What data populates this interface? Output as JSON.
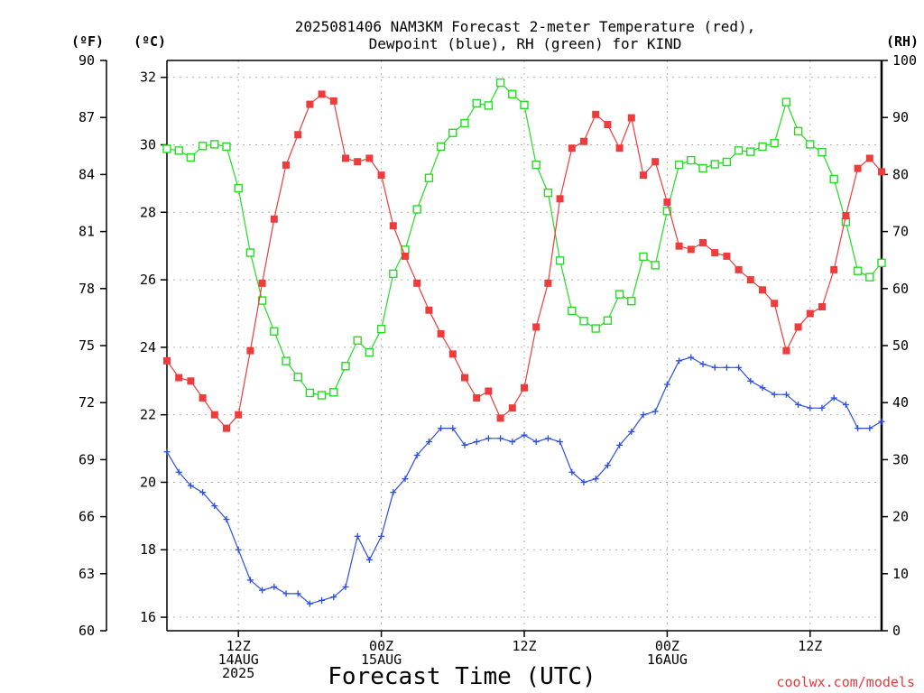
{
  "chart_data": {
    "type": "line",
    "title_lines": [
      "2025081406 NAM3KM Forecast 2-meter Temperature (red),",
      "Dewpoint (blue), RH (green) for KIND"
    ],
    "xlabel": "Forecast Time (UTC)",
    "credit": "coolwx.com/models",
    "units": {
      "left_outer": "(ºF)",
      "left_inner": "(ºC)",
      "right": "(RH)"
    },
    "x_range_hours": [
      -6,
      54
    ],
    "x_ticks": [
      {
        "hour": 0,
        "lines": [
          "12Z",
          "14AUG",
          "2025"
        ]
      },
      {
        "hour": 12,
        "lines": [
          "00Z",
          "15AUG"
        ]
      },
      {
        "hour": 24,
        "lines": [
          "12Z"
        ]
      },
      {
        "hour": 36,
        "lines": [
          "00Z",
          "16AUG"
        ]
      },
      {
        "hour": 48,
        "lines": [
          "12Z"
        ]
      }
    ],
    "celsius_axis": {
      "range": [
        15.6,
        32.5
      ],
      "ticks": [
        16,
        18,
        20,
        22,
        24,
        26,
        28,
        30,
        32
      ]
    },
    "fahrenheit_axis": {
      "range": [
        60,
        90
      ],
      "ticks": [
        60,
        63,
        66,
        69,
        72,
        75,
        78,
        81,
        84,
        87,
        90
      ]
    },
    "rh_axis": {
      "range": [
        0,
        100
      ],
      "ticks": [
        0,
        10,
        20,
        30,
        40,
        50,
        60,
        70,
        80,
        90,
        100
      ]
    },
    "colors": {
      "temperature": "#ee3b3b",
      "dewpoint": "#2d4fe0",
      "rh": "#22dd22",
      "grid": "#b0b0b0"
    },
    "grid": true,
    "series": [
      {
        "name": "Temperature",
        "axis": "celsius",
        "marker": "filled-square",
        "x": [
          -6,
          -5,
          -4,
          -3,
          -2,
          -1,
          0,
          1,
          2,
          3,
          4,
          5,
          6,
          7,
          8,
          9,
          10,
          11,
          12,
          13,
          14,
          15,
          16,
          17,
          18,
          19,
          20,
          21,
          22,
          23,
          24,
          25,
          26,
          27,
          28,
          29,
          30,
          31,
          32,
          33,
          34,
          35,
          36,
          37,
          38,
          39,
          40,
          41,
          42,
          43,
          44,
          45,
          46,
          47,
          48,
          49,
          50,
          51,
          52,
          53,
          54
        ],
        "values": [
          23.6,
          23.1,
          23.0,
          22.5,
          22.0,
          21.6,
          22.0,
          23.9,
          25.9,
          27.8,
          29.4,
          30.3,
          31.2,
          31.5,
          31.3,
          29.6,
          29.5,
          29.6,
          29.1,
          27.6,
          26.7,
          25.9,
          25.1,
          24.4,
          23.8,
          23.1,
          22.5,
          22.7,
          21.9,
          22.2,
          22.8,
          24.6,
          25.9,
          28.4,
          29.9,
          30.1,
          30.9,
          30.6,
          29.9,
          30.8,
          29.1,
          29.5,
          28.3,
          27.0,
          26.9,
          27.1,
          26.8,
          26.7,
          26.3,
          26.0,
          25.7,
          25.3,
          23.9,
          24.6,
          25.0,
          25.2,
          26.3,
          27.9,
          29.3,
          29.6,
          29.2
        ]
      },
      {
        "name": "Dewpoint",
        "axis": "celsius",
        "marker": "plus",
        "x": [
          -6,
          -5,
          -4,
          -3,
          -2,
          -1,
          0,
          1,
          2,
          3,
          4,
          5,
          6,
          7,
          8,
          9,
          10,
          11,
          12,
          13,
          14,
          15,
          16,
          17,
          18,
          19,
          20,
          21,
          22,
          23,
          24,
          25,
          26,
          27,
          28,
          29,
          30,
          31,
          32,
          33,
          34,
          35,
          36,
          37,
          38,
          39,
          40,
          41,
          42,
          43,
          44,
          45,
          46,
          47,
          48,
          49,
          50,
          51,
          52,
          53,
          54
        ],
        "values": [
          20.9,
          20.3,
          19.9,
          19.7,
          19.3,
          18.9,
          18.0,
          17.1,
          16.8,
          16.9,
          16.7,
          16.7,
          16.4,
          16.5,
          16.6,
          16.9,
          18.4,
          17.7,
          18.4,
          19.7,
          20.1,
          20.8,
          21.2,
          21.6,
          21.6,
          21.1,
          21.2,
          21.3,
          21.3,
          21.2,
          21.4,
          21.2,
          21.3,
          21.2,
          20.3,
          20.0,
          20.1,
          20.5,
          21.1,
          21.5,
          22.0,
          22.1,
          22.9,
          23.6,
          23.7,
          23.5,
          23.4,
          23.4,
          23.4,
          23.0,
          22.8,
          22.6,
          22.6,
          22.3,
          22.2,
          22.2,
          22.5,
          22.3,
          21.6,
          21.6,
          21.8
        ]
      },
      {
        "name": "RH",
        "axis": "rh",
        "marker": "open-square",
        "x": [
          -6,
          -5,
          -4,
          -3,
          -2,
          -1,
          0,
          1,
          2,
          3,
          4,
          5,
          6,
          7,
          8,
          9,
          10,
          11,
          12,
          13,
          14,
          15,
          16,
          17,
          18,
          19,
          20,
          21,
          22,
          23,
          24,
          25,
          26,
          27,
          28,
          29,
          30,
          31,
          32,
          33,
          34,
          35,
          36,
          37,
          38,
          39,
          40,
          41,
          42,
          43,
          44,
          45,
          46,
          47,
          48,
          49,
          50,
          51,
          52,
          53,
          54
        ],
        "values": [
          84.5,
          84.2,
          83.0,
          85.0,
          85.3,
          84.9,
          77.6,
          66.3,
          57.9,
          52.5,
          47.3,
          44.5,
          41.7,
          41.3,
          41.8,
          46.4,
          50.9,
          48.8,
          52.9,
          62.6,
          66.8,
          73.9,
          79.4,
          84.9,
          87.3,
          89.0,
          92.5,
          92.1,
          96.1,
          94.1,
          92.2,
          81.7,
          76.8,
          64.9,
          56.1,
          54.3,
          53.0,
          54.4,
          59.0,
          57.8,
          65.6,
          64.1,
          73.6,
          81.7,
          82.5,
          81.1,
          81.8,
          82.2,
          84.2,
          84.0,
          84.9,
          85.5,
          92.7,
          87.6,
          85.3,
          83.9,
          79.2,
          71.7,
          63.1,
          62.0,
          64.5
        ]
      }
    ]
  }
}
